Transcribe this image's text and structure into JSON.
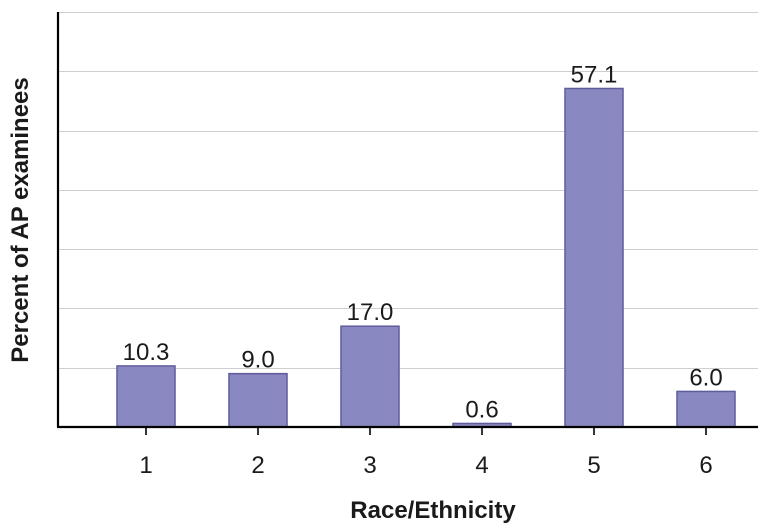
{
  "chart_data": {
    "type": "bar",
    "categories": [
      "1",
      "2",
      "3",
      "4",
      "5",
      "6"
    ],
    "values": [
      10.3,
      9.0,
      17.0,
      0.6,
      57.1,
      6.0
    ],
    "value_labels": [
      "10.3",
      "9.0",
      "17.0",
      "0.6",
      "57.1",
      "6.0"
    ],
    "xlabel": "Race/Ethnicity",
    "ylabel": "Percent of AP examinees",
    "ylim": [
      0,
      70
    ],
    "gridline_step": 10,
    "grid": true,
    "bar_color": "#8a88c0",
    "bar_edge_color": "#5e5c9c"
  }
}
